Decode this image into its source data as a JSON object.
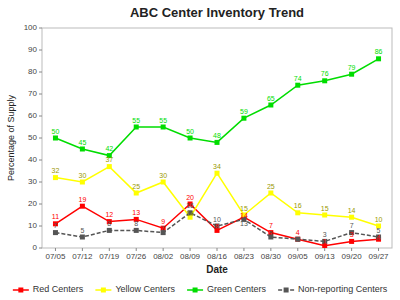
{
  "chart_data": {
    "type": "line",
    "title": "ABC Center Inventory Trend",
    "xlabel": "Date",
    "ylabel": "Percentage of Supply",
    "categories": [
      "07/05",
      "07/12",
      "07/19",
      "07/26",
      "08/02",
      "08/09",
      "08/16",
      "08/23",
      "08/30",
      "09/05",
      "09/13",
      "09/20",
      "09/27"
    ],
    "series": [
      {
        "name": "Red Centers",
        "color": "#ff0000",
        "values": [
          11,
          19,
          12,
          13,
          9,
          20,
          8,
          14,
          7,
          4,
          1,
          3,
          4
        ]
      },
      {
        "name": "Yellow Centers",
        "color": "#ffff00",
        "values": [
          32,
          30,
          37,
          25,
          30,
          14,
          34,
          15,
          25,
          16,
          15,
          14,
          10
        ]
      },
      {
        "name": "Green Centers",
        "color": "#00dd00",
        "values": [
          50,
          45,
          42,
          55,
          55,
          50,
          48,
          59,
          65,
          74,
          76,
          79,
          86
        ]
      },
      {
        "name": "Non-reporting Centers",
        "color": "#555555",
        "line_style": "dashed",
        "values": [
          7,
          5,
          8,
          8,
          7,
          16,
          10,
          13,
          5,
          4,
          3,
          7,
          5
        ]
      }
    ],
    "marker": "square",
    "ylim": [
      0,
      100
    ],
    "yticks": [
      0,
      10,
      20,
      30,
      40,
      50,
      60,
      70,
      80,
      90,
      100
    ],
    "grid": false,
    "legend": "bottom",
    "data_labels": true
  }
}
